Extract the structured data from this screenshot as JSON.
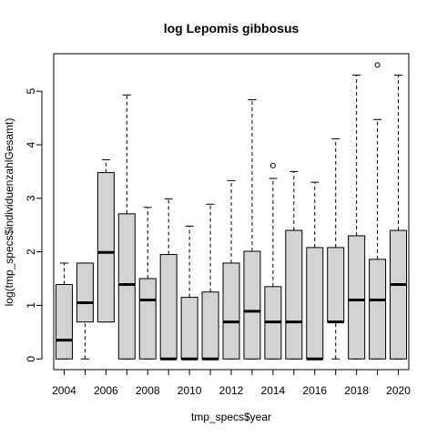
{
  "chart_data": {
    "type": "boxplot",
    "title": "log Lepomis gibbosus",
    "xlabel": "tmp_specs$year",
    "ylabel": "log(tmp_specs$individuenzahlGesamt)",
    "ylim": [
      -0.2,
      5.7
    ],
    "y_ticks": [
      0,
      1,
      2,
      3,
      4,
      5
    ],
    "x_tick_labels": [
      "2004",
      "2006",
      "2008",
      "2010",
      "2012",
      "2014",
      "2016",
      "2018",
      "2020"
    ],
    "grid": false,
    "box_color": "#d3d3d3",
    "categories": [
      "2004",
      "2005",
      "2006",
      "2007",
      "2008",
      "2009",
      "2010",
      "2011",
      "2012",
      "2013",
      "2014",
      "2015",
      "2016",
      "2017",
      "2018",
      "2019",
      "2020"
    ],
    "boxes": [
      {
        "year": "2004",
        "whisker_low": 0.0,
        "q1": 0.0,
        "median": 0.35,
        "q3": 1.39,
        "whisker_high": 1.79,
        "outliers": []
      },
      {
        "year": "2005",
        "whisker_low": 0.0,
        "q1": 0.69,
        "median": 1.05,
        "q3": 1.79,
        "whisker_high": 1.79,
        "outliers": []
      },
      {
        "year": "2006",
        "whisker_low": 0.69,
        "q1": 0.69,
        "median": 1.99,
        "q3": 3.48,
        "whisker_high": 3.72,
        "outliers": []
      },
      {
        "year": "2007",
        "whisker_low": 0.0,
        "q1": 0.0,
        "median": 1.39,
        "q3": 2.71,
        "whisker_high": 4.93,
        "outliers": []
      },
      {
        "year": "2008",
        "whisker_low": 0.0,
        "q1": 0.0,
        "median": 1.1,
        "q3": 1.5,
        "whisker_high": 2.83,
        "outliers": []
      },
      {
        "year": "2009",
        "whisker_low": 0.0,
        "q1": 0.0,
        "median": 0.0,
        "q3": 1.95,
        "whisker_high": 2.99,
        "outliers": []
      },
      {
        "year": "2010",
        "whisker_low": 0.0,
        "q1": 0.0,
        "median": 0.0,
        "q3": 1.15,
        "whisker_high": 2.48,
        "outliers": []
      },
      {
        "year": "2011",
        "whisker_low": 0.0,
        "q1": 0.0,
        "median": 0.0,
        "q3": 1.25,
        "whisker_high": 2.89,
        "outliers": []
      },
      {
        "year": "2012",
        "whisker_low": 0.0,
        "q1": 0.0,
        "median": 0.69,
        "q3": 1.79,
        "whisker_high": 3.33,
        "outliers": []
      },
      {
        "year": "2013",
        "whisker_low": 0.0,
        "q1": 0.0,
        "median": 0.89,
        "q3": 2.01,
        "whisker_high": 4.84,
        "outliers": []
      },
      {
        "year": "2014",
        "whisker_low": 0.0,
        "q1": 0.0,
        "median": 0.69,
        "q3": 1.35,
        "whisker_high": 3.37,
        "outliers": [
          3.61
        ]
      },
      {
        "year": "2015",
        "whisker_low": 0.0,
        "q1": 0.0,
        "median": 0.69,
        "q3": 2.4,
        "whisker_high": 3.5,
        "outliers": []
      },
      {
        "year": "2016",
        "whisker_low": 0.0,
        "q1": 0.0,
        "median": 0.0,
        "q3": 2.08,
        "whisker_high": 3.3,
        "outliers": []
      },
      {
        "year": "2017",
        "whisker_low": 0.0,
        "q1": 0.69,
        "median": 0.69,
        "q3": 2.08,
        "whisker_high": 4.11,
        "outliers": []
      },
      {
        "year": "2018",
        "whisker_low": 0.0,
        "q1": 0.0,
        "median": 1.1,
        "q3": 2.3,
        "whisker_high": 5.3,
        "outliers": []
      },
      {
        "year": "2019",
        "whisker_low": 0.0,
        "q1": 0.0,
        "median": 1.1,
        "q3": 1.86,
        "whisker_high": 4.47,
        "outliers": [
          5.49
        ]
      },
      {
        "year": "2020",
        "whisker_low": 0.0,
        "q1": 0.0,
        "median": 1.39,
        "q3": 2.4,
        "whisker_high": 5.3,
        "outliers": []
      }
    ]
  }
}
